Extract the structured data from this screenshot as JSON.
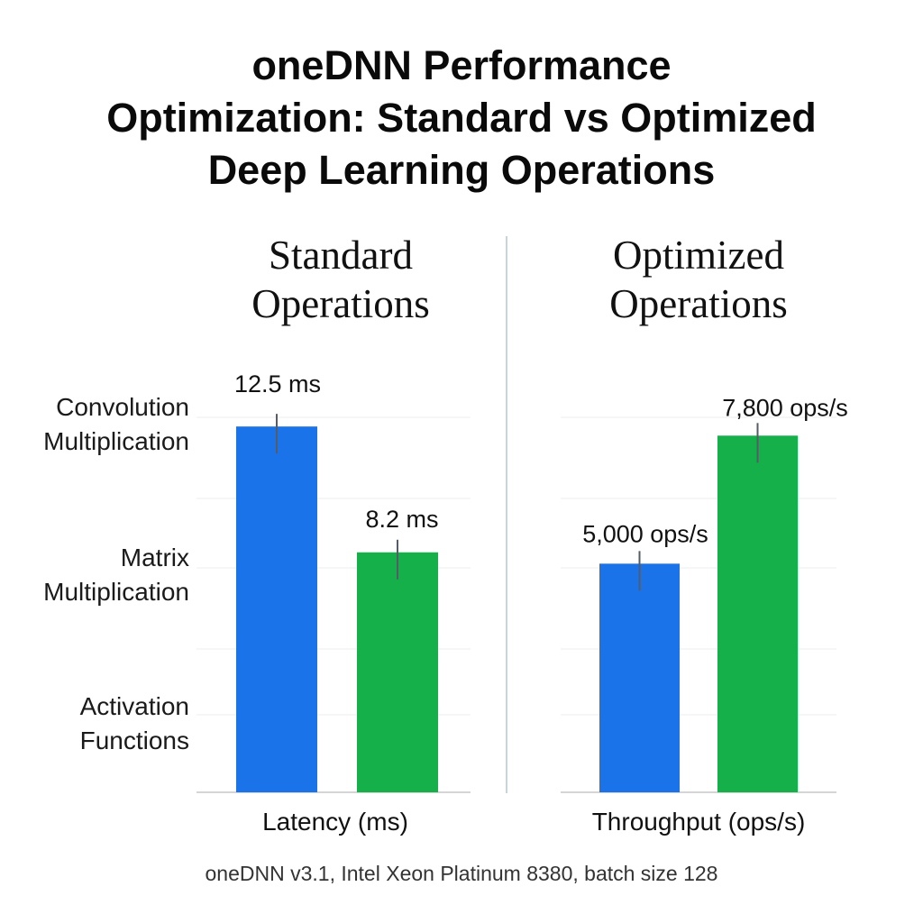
{
  "title_lines": [
    "oneDNN Performance",
    "Optimization: Standard vs Optimized",
    "Deep Learning Operations"
  ],
  "row_labels": [
    [
      "Convolution",
      "Multiplication"
    ],
    [
      "Matrix",
      "Multiplication"
    ],
    [
      "Activation",
      "Functions"
    ]
  ],
  "footnote": "oneDNN v3.1, Intel Xeon Platinum 8380, batch size 128",
  "colors": {
    "standard": "#1a73e8",
    "optimized": "#16b04a"
  },
  "chart_data": [
    {
      "type": "bar",
      "title": "Standard Operations",
      "title_lines": [
        "Standard",
        "Operations"
      ],
      "xlabel": "Latency (ms)",
      "categories": [
        "",
        ""
      ],
      "values": [
        12.5,
        8.2
      ],
      "data_labels": [
        "12.5 ms",
        "8.2 ms"
      ],
      "colors": [
        "#1a73e8",
        "#16b04a"
      ],
      "ylim": [
        0,
        15
      ],
      "grid": true
    },
    {
      "type": "bar",
      "title": "Optimized Operations",
      "title_lines": [
        "Optimized",
        "Operations"
      ],
      "xlabel": "Throughput (ops/s)",
      "categories": [
        "",
        ""
      ],
      "values": [
        5000,
        7800
      ],
      "data_labels": [
        "5,000 ops/s",
        "7,800 ops/s"
      ],
      "colors": [
        "#1a73e8",
        "#16b04a"
      ],
      "ylim": [
        0,
        9600
      ],
      "grid": true
    }
  ]
}
